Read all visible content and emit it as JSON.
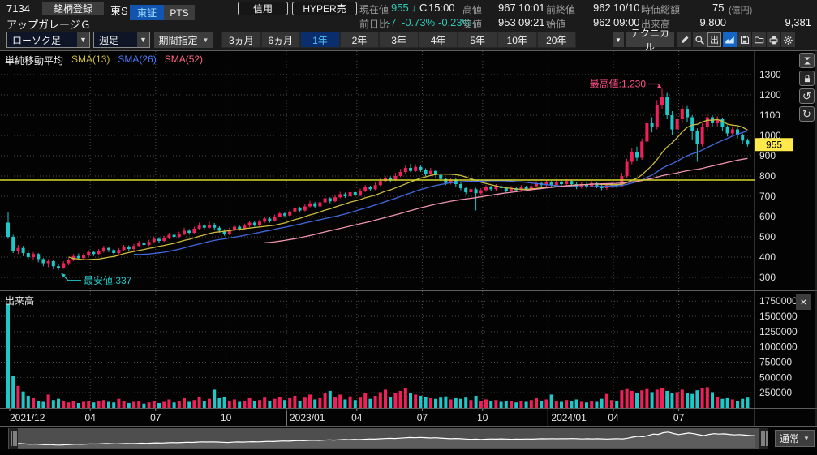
{
  "header": {
    "code": "7134",
    "register_button": "銘柄登録",
    "market": "東S",
    "exchange_tabs": [
      {
        "label": "東証",
        "active": true
      },
      {
        "label": "PTS",
        "active": false
      }
    ],
    "name": "アップガレージＧ",
    "margin_button": "信用",
    "hyper_button": "HYPER売",
    "quote": {
      "current_label": "現在値",
      "current": "955",
      "arrow": "↓",
      "flag": "C",
      "current_time": "15:00",
      "change_label": "前日比",
      "change": "-7",
      "change_pct": "-0.73%",
      "change_pct2": "-0.23%",
      "high_label": "高値",
      "high": "967",
      "high_time": "10:01",
      "low_label": "安値",
      "low": "953",
      "low_time": "09:21",
      "prev_label": "前終値",
      "prev": "962",
      "prev_date": "10/10",
      "open_label": "始値",
      "open": "962",
      "open_time": "09:00",
      "cap_label": "時価総額",
      "cap": "75",
      "cap_unit": "(億円)",
      "vol_label": "出来高",
      "vol": "9,800",
      "vol_right": "9,381"
    }
  },
  "toolbar": {
    "chart_type": "ローソク足",
    "timeframe": "週足",
    "period_label": "期間指定",
    "periods": [
      "3ヵ月",
      "6ヵ月",
      "1年",
      "2年",
      "3年",
      "4年",
      "5年",
      "10年",
      "20年"
    ],
    "active_period": "1年",
    "technical": "テクニカル",
    "out_button": "出"
  },
  "legend": {
    "title": "単純移動平均",
    "sma": [
      {
        "label": "SMA(13)",
        "color": "#cdbb3c"
      },
      {
        "label": "SMA(26)",
        "color": "#4d79ff"
      },
      {
        "label": "SMA(52)",
        "color": "#ff6680"
      }
    ]
  },
  "volume_pane": {
    "label": "出来高"
  },
  "bottom": {
    "mode": "通常"
  },
  "chart_data": {
    "type": "candlestick",
    "title": "アップガレージG 週足 1年",
    "up_color": "#f0215a",
    "down_color": "#1ec8c8",
    "grid_color": "#4f4f4f",
    "price_ticks": [
      1300,
      1200,
      1100,
      1000,
      900,
      800,
      700,
      600,
      500,
      400,
      300
    ],
    "volume_ticks": [
      1750000,
      1500000,
      1250000,
      1000000,
      750000,
      500000,
      250000
    ],
    "x_labels": [
      {
        "week": 0,
        "label": "2021/12",
        "align": "start"
      },
      {
        "week": 16,
        "label": "04"
      },
      {
        "week": 29,
        "label": "07"
      },
      {
        "week": 43,
        "label": "10"
      },
      {
        "week": 55,
        "label": "2023/01",
        "align": "start",
        "year": true
      },
      {
        "week": 69,
        "label": "04"
      },
      {
        "week": 82,
        "label": "07"
      },
      {
        "week": 94,
        "label": "10"
      },
      {
        "week": 107,
        "label": "2024/01",
        "align": "start",
        "year": true
      },
      {
        "week": 120,
        "label": "04"
      },
      {
        "week": 133,
        "label": "07"
      }
    ],
    "hline": {
      "price": 780,
      "color": "#d8d832"
    },
    "current_price_tag": {
      "value": "955",
      "price": 955,
      "bg": "#ffe94b"
    },
    "annotations": [
      {
        "text": "最高値:1,230",
        "week": 130,
        "price": 1230,
        "color": "#ff4d88",
        "kind": "high"
      },
      {
        "text": "最安値:337",
        "week": 10,
        "price": 337,
        "color": "#25c8c8",
        "kind": "low"
      }
    ],
    "sma_defs": [
      {
        "period": 13,
        "color": "#cdbb3c"
      },
      {
        "period": 26,
        "color": "#4169e0"
      },
      {
        "period": 52,
        "color": "#ef93ad"
      }
    ],
    "ohlcv": [
      [
        570,
        620,
        490,
        500,
        1700000
      ],
      [
        500,
        510,
        420,
        430,
        520000
      ],
      [
        430,
        460,
        415,
        445,
        360000
      ],
      [
        445,
        455,
        405,
        420,
        270000
      ],
      [
        420,
        430,
        390,
        400,
        200000
      ],
      [
        400,
        425,
        385,
        415,
        160000
      ],
      [
        415,
        420,
        375,
        390,
        120000
      ],
      [
        390,
        395,
        355,
        370,
        100000
      ],
      [
        370,
        390,
        350,
        380,
        220000
      ],
      [
        380,
        385,
        340,
        355,
        130000
      ],
      [
        355,
        365,
        337,
        345,
        150000
      ],
      [
        345,
        380,
        342,
        370,
        120000
      ],
      [
        370,
        395,
        360,
        385,
        90000
      ],
      [
        385,
        415,
        380,
        405,
        110000
      ],
      [
        405,
        418,
        388,
        395,
        80000
      ],
      [
        395,
        420,
        390,
        410,
        100000
      ],
      [
        410,
        435,
        402,
        425,
        120000
      ],
      [
        425,
        432,
        405,
        415,
        90000
      ],
      [
        415,
        440,
        410,
        430,
        110000
      ],
      [
        430,
        455,
        422,
        445,
        130000
      ],
      [
        445,
        452,
        425,
        435,
        100000
      ],
      [
        435,
        442,
        408,
        420,
        90000
      ],
      [
        420,
        445,
        412,
        435,
        150000
      ],
      [
        435,
        460,
        428,
        450,
        120000
      ],
      [
        450,
        458,
        430,
        440,
        80000
      ],
      [
        440,
        465,
        432,
        455,
        100000
      ],
      [
        455,
        480,
        448,
        470,
        110000
      ],
      [
        470,
        478,
        450,
        460,
        70000
      ],
      [
        460,
        485,
        455,
        475,
        90000
      ],
      [
        475,
        500,
        468,
        490,
        120000
      ],
      [
        490,
        498,
        470,
        480,
        80000
      ],
      [
        480,
        505,
        475,
        495,
        100000
      ],
      [
        495,
        520,
        488,
        510,
        140000
      ],
      [
        510,
        518,
        490,
        500,
        90000
      ],
      [
        500,
        525,
        495,
        515,
        110000
      ],
      [
        515,
        545,
        508,
        530,
        160000
      ],
      [
        530,
        538,
        510,
        520,
        100000
      ],
      [
        520,
        550,
        515,
        540,
        130000
      ],
      [
        540,
        570,
        535,
        555,
        180000
      ],
      [
        555,
        562,
        535,
        545,
        110000
      ],
      [
        545,
        575,
        540,
        560,
        150000
      ],
      [
        560,
        568,
        535,
        545,
        300000
      ],
      [
        545,
        552,
        520,
        530,
        160000
      ],
      [
        530,
        538,
        505,
        515,
        180000
      ],
      [
        515,
        545,
        508,
        535,
        120000
      ],
      [
        535,
        560,
        528,
        550,
        140000
      ],
      [
        550,
        558,
        530,
        540,
        100000
      ],
      [
        540,
        565,
        535,
        555,
        120000
      ],
      [
        555,
        580,
        548,
        570,
        160000
      ],
      [
        570,
        578,
        550,
        560,
        110000
      ],
      [
        560,
        585,
        552,
        575,
        130000
      ],
      [
        575,
        600,
        568,
        590,
        170000
      ],
      [
        590,
        598,
        570,
        580,
        120000
      ],
      [
        580,
        610,
        575,
        600,
        150000
      ],
      [
        600,
        625,
        595,
        615,
        180000
      ],
      [
        615,
        622,
        595,
        605,
        130000
      ],
      [
        605,
        635,
        600,
        625,
        160000
      ],
      [
        625,
        650,
        618,
        640,
        200000
      ],
      [
        640,
        648,
        620,
        630,
        120000
      ],
      [
        630,
        660,
        625,
        650,
        170000
      ],
      [
        650,
        678,
        645,
        665,
        220000
      ],
      [
        665,
        672,
        640,
        650,
        140000
      ],
      [
        650,
        682,
        645,
        670,
        160000
      ],
      [
        670,
        700,
        665,
        690,
        250000
      ],
      [
        690,
        695,
        665,
        675,
        280000
      ],
      [
        675,
        705,
        670,
        695,
        180000
      ],
      [
        695,
        722,
        690,
        710,
        220000
      ],
      [
        710,
        718,
        692,
        700,
        140000
      ],
      [
        700,
        730,
        695,
        720,
        190000
      ],
      [
        720,
        725,
        698,
        705,
        130000
      ],
      [
        705,
        738,
        700,
        725,
        170000
      ],
      [
        725,
        755,
        720,
        745,
        240000
      ],
      [
        745,
        752,
        725,
        735,
        150000
      ],
      [
        735,
        768,
        730,
        755,
        200000
      ],
      [
        755,
        788,
        750,
        775,
        260000
      ],
      [
        775,
        800,
        770,
        790,
        300000
      ],
      [
        790,
        798,
        772,
        780,
        180000
      ],
      [
        780,
        815,
        775,
        800,
        250000
      ],
      [
        800,
        835,
        795,
        820,
        280000
      ],
      [
        820,
        855,
        812,
        840,
        320000
      ],
      [
        840,
        860,
        818,
        825,
        240000
      ],
      [
        825,
        858,
        820,
        845,
        220000
      ],
      [
        845,
        852,
        820,
        830,
        200000
      ],
      [
        830,
        838,
        800,
        810,
        180000
      ],
      [
        810,
        840,
        802,
        825,
        160000
      ],
      [
        825,
        830,
        790,
        805,
        150000
      ],
      [
        805,
        810,
        775,
        785,
        170000
      ],
      [
        785,
        792,
        755,
        765,
        190000
      ],
      [
        765,
        790,
        758,
        780,
        140000
      ],
      [
        780,
        788,
        748,
        760,
        160000
      ],
      [
        760,
        768,
        730,
        740,
        150000
      ],
      [
        740,
        748,
        710,
        720,
        170000
      ],
      [
        720,
        745,
        705,
        735,
        130000
      ],
      [
        735,
        742,
        630,
        715,
        200000
      ],
      [
        715,
        740,
        708,
        730,
        120000
      ],
      [
        730,
        755,
        722,
        745,
        140000
      ],
      [
        745,
        752,
        725,
        735,
        110000
      ],
      [
        735,
        760,
        728,
        750,
        130000
      ],
      [
        750,
        758,
        730,
        740,
        100000
      ],
      [
        740,
        748,
        715,
        725,
        120000
      ],
      [
        725,
        750,
        718,
        740,
        110000
      ],
      [
        740,
        748,
        720,
        730,
        90000
      ],
      [
        730,
        755,
        722,
        745,
        120000
      ],
      [
        745,
        752,
        725,
        735,
        100000
      ],
      [
        735,
        762,
        728,
        750,
        130000
      ],
      [
        750,
        775,
        745,
        765,
        160000
      ],
      [
        765,
        772,
        745,
        755,
        110000
      ],
      [
        755,
        780,
        748,
        770,
        140000
      ],
      [
        770,
        775,
        745,
        755,
        220000
      ],
      [
        755,
        780,
        750,
        770,
        120000
      ],
      [
        770,
        778,
        750,
        760,
        100000
      ],
      [
        760,
        785,
        752,
        775,
        130000
      ],
      [
        775,
        780,
        750,
        760,
        110000
      ],
      [
        760,
        768,
        735,
        745,
        140000
      ],
      [
        745,
        770,
        738,
        760,
        100000
      ],
      [
        760,
        768,
        740,
        750,
        90000
      ],
      [
        750,
        775,
        745,
        765,
        120000
      ],
      [
        765,
        770,
        740,
        750,
        100000
      ],
      [
        750,
        758,
        730,
        740,
        150000
      ],
      [
        740,
        765,
        732,
        755,
        230000
      ],
      [
        755,
        770,
        742,
        760,
        130000
      ],
      [
        760,
        768,
        740,
        750,
        110000
      ],
      [
        750,
        815,
        745,
        800,
        290000
      ],
      [
        800,
        885,
        792,
        870,
        310000
      ],
      [
        870,
        940,
        858,
        920,
        280000
      ],
      [
        920,
        945,
        875,
        890,
        240000
      ],
      [
        890,
        985,
        880,
        970,
        290000
      ],
      [
        970,
        1080,
        955,
        1060,
        310000
      ],
      [
        1060,
        1090,
        1015,
        1040,
        260000
      ],
      [
        1040,
        1175,
        1030,
        1150,
        300000
      ],
      [
        1150,
        1230,
        1130,
        1190,
        320000
      ],
      [
        1190,
        1210,
        1080,
        1100,
        280000
      ],
      [
        1100,
        1120,
        1000,
        1030,
        240000
      ],
      [
        1030,
        1110,
        1010,
        1080,
        260000
      ],
      [
        1080,
        1150,
        1060,
        1130,
        300000
      ],
      [
        1130,
        1145,
        1065,
        1090,
        250000
      ],
      [
        1090,
        1100,
        980,
        1020,
        230000
      ],
      [
        1020,
        1035,
        870,
        960,
        290000
      ],
      [
        960,
        1060,
        945,
        1040,
        330000
      ],
      [
        1040,
        1105,
        1020,
        1090,
        340000
      ],
      [
        1090,
        1100,
        1040,
        1060,
        260000
      ],
      [
        1060,
        1095,
        1045,
        1080,
        180000
      ],
      [
        1080,
        1088,
        1020,
        1040,
        150000
      ],
      [
        1040,
        1050,
        995,
        1010,
        160000
      ],
      [
        1010,
        1045,
        1000,
        1030,
        140000
      ],
      [
        1030,
        1040,
        985,
        1000,
        120000
      ],
      [
        1000,
        1010,
        960,
        975,
        150000
      ],
      [
        975,
        985,
        945,
        955,
        170000
      ]
    ]
  }
}
